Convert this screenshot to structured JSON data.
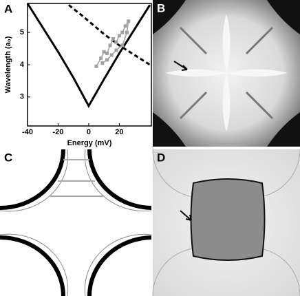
{
  "panels": {
    "a": "A",
    "b": "B",
    "c": "C",
    "d": "D"
  },
  "chart_data": {
    "type": "line",
    "xlabel": "Energy (mV)",
    "ylabel": "Wavelength (a₀)",
    "xlim": [
      -40,
      41
    ],
    "ylim": [
      2.1,
      5.9
    ],
    "xticks": [
      -40,
      -20,
      0,
      20
    ],
    "yticks": [
      3,
      4,
      5
    ],
    "series": [
      {
        "color": "#000000",
        "dash": false,
        "markers": false,
        "x": [
          -40,
          -30,
          -20,
          -10,
          0,
          10,
          20,
          30,
          40
        ],
        "values": [
          5.9,
          5.15,
          4.4,
          3.6,
          2.72,
          3.55,
          4.35,
          5.1,
          5.85
        ]
      },
      {
        "color": "#000000",
        "dash": true,
        "markers": false,
        "x": [
          -13,
          -5,
          0,
          10,
          20,
          30,
          40
        ],
        "values": [
          5.85,
          5.55,
          5.35,
          4.95,
          4.6,
          4.3,
          4.0
        ]
      },
      {
        "color": "#a0a0a0",
        "dash": false,
        "markers": true,
        "x": [
          5,
          8,
          10,
          12,
          14,
          16,
          18,
          20,
          22,
          24,
          26,
          25,
          22,
          18,
          15,
          12,
          9
        ],
        "values": [
          3.95,
          4.2,
          4.4,
          4.35,
          4.6,
          4.8,
          4.7,
          4.9,
          5.0,
          5.2,
          5.35,
          5.0,
          4.6,
          4.45,
          4.3,
          4.15,
          4.05
        ]
      }
    ]
  }
}
